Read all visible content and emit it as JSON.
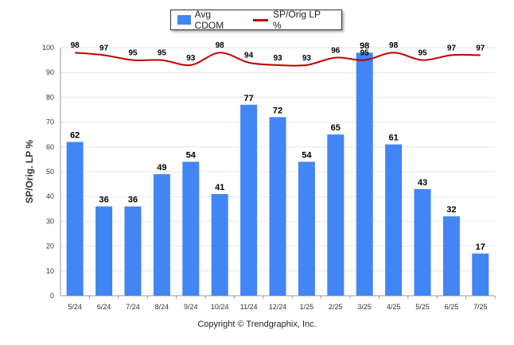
{
  "chart_data": {
    "type": "bar",
    "categories": [
      "5/24",
      "6/24",
      "7/24",
      "8/24",
      "9/24",
      "10/24",
      "11/24",
      "12/24",
      "1/25",
      "2/25",
      "3/25",
      "4/25",
      "5/25",
      "6/25",
      "7/25"
    ],
    "series": [
      {
        "name": "Avg CDOM",
        "type": "bar",
        "color": "#4285f4",
        "values": [
          62,
          36,
          36,
          49,
          54,
          41,
          77,
          72,
          54,
          65,
          98,
          61,
          43,
          32,
          17
        ]
      },
      {
        "name": "SP/Orig LP %",
        "type": "line",
        "color": "#c00000",
        "values": [
          98,
          97,
          95,
          95,
          93,
          98,
          94,
          93,
          93,
          96,
          95,
          98,
          95,
          97,
          97
        ]
      }
    ],
    "ylabel": "SP/Orig. LP %",
    "ylim": [
      0,
      100
    ],
    "yticks": [
      0,
      10,
      20,
      30,
      40,
      50,
      60,
      70,
      80,
      90,
      100
    ],
    "grid": true,
    "legend_position": "top-center"
  },
  "footer": {
    "copyright": "Copyright © Trendgraphix, Inc."
  }
}
